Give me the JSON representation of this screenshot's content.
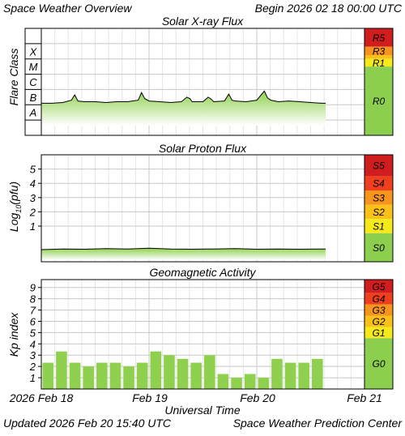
{
  "header": {
    "title": "Space Weather Overview",
    "begin": "Begin 2026 02 18 00:00 UTC"
  },
  "footer": {
    "updated": "Updated 2026 Feb 20 15:40 UTC",
    "credit": "Space Weather Prediction Center"
  },
  "colors": {
    "grid": "#dcdcdc",
    "green_fill": "#8fd14f",
    "green_light": "#eef9e4",
    "bar": "#8fd14f",
    "scale_0": "#8ccf4f",
    "scale_1": "#f5e91a",
    "scale_2": "#f9c119",
    "scale_3": "#f7941d",
    "scale_4": "#ef3f1f",
    "scale_5": "#d01d1d"
  },
  "chart_data": [
    {
      "type": "area",
      "title": "Solar X-ray Flux",
      "ylabel": "Flare Class",
      "y_log_flux": true,
      "ylim": [
        -9,
        -2
      ],
      "class_labels": [
        "A",
        "B",
        "C",
        "M",
        "X"
      ],
      "x_tick_labels": [
        "2026 Feb 18",
        "Feb 19",
        "Feb 20",
        "Feb 21"
      ],
      "xlim": [
        0,
        3
      ],
      "x": [
        0.0,
        0.1,
        0.2,
        0.28,
        0.31,
        0.34,
        0.4,
        0.5,
        0.6,
        0.7,
        0.8,
        0.9,
        0.93,
        0.96,
        1.0,
        1.1,
        1.2,
        1.3,
        1.35,
        1.38,
        1.4,
        1.5,
        1.55,
        1.58,
        1.6,
        1.7,
        1.74,
        1.77,
        1.8,
        1.9,
        2.0,
        2.07,
        2.1,
        2.13,
        2.2,
        2.3,
        2.4,
        2.5,
        2.6,
        2.64
      ],
      "y": [
        -6.9,
        -6.9,
        -6.85,
        -6.7,
        -6.35,
        -6.75,
        -6.8,
        -6.8,
        -6.85,
        -6.8,
        -6.8,
        -6.7,
        -6.2,
        -6.6,
        -6.75,
        -6.8,
        -6.85,
        -6.8,
        -6.5,
        -6.6,
        -6.8,
        -6.8,
        -6.5,
        -6.65,
        -6.8,
        -6.75,
        -6.3,
        -6.7,
        -6.75,
        -6.8,
        -6.7,
        -6.1,
        -6.55,
        -6.7,
        -6.8,
        -6.75,
        -6.8,
        -6.85,
        -6.9,
        -6.9
      ],
      "scale_labels": [
        "R5",
        "R3",
        "",
        "R1",
        "R0"
      ]
    },
    {
      "type": "area",
      "title": "Solar Proton Flux",
      "ylabel": "Log10(pfu)",
      "ylabel_main": "Log",
      "ylabel_sub": "10",
      "ylabel_tail": "(pfu)",
      "ylim": [
        -1.5,
        6
      ],
      "y_ticks": [
        "1",
        "2",
        "3",
        "4",
        "5"
      ],
      "x": [
        0.0,
        0.2,
        0.4,
        0.6,
        0.8,
        1.0,
        1.2,
        1.4,
        1.6,
        1.8,
        2.0,
        2.2,
        2.4,
        2.64
      ],
      "y": [
        -0.65,
        -0.6,
        -0.62,
        -0.58,
        -0.6,
        -0.55,
        -0.6,
        -0.62,
        -0.6,
        -0.58,
        -0.62,
        -0.6,
        -0.62,
        -0.6
      ],
      "scale_labels": [
        "S5",
        "S4",
        "S3",
        "S2",
        "S1",
        "S0"
      ]
    },
    {
      "type": "bar",
      "title": "Geomagnetic Activity",
      "ylabel": "Kp index",
      "ylim": [
        0,
        9
      ],
      "y_ticks": [
        "1",
        "2",
        "3",
        "4",
        "5",
        "6",
        "7",
        "8",
        "9"
      ],
      "values": [
        2.33,
        3.33,
        2.33,
        2.0,
        2.33,
        2.33,
        2.0,
        2.33,
        3.33,
        3.0,
        2.67,
        2.33,
        3.0,
        1.33,
        1.0,
        1.33,
        1.0,
        2.67,
        2.33,
        2.33,
        2.67
      ],
      "bar_interval_days": 0.125,
      "x_tick_labels": [
        "2026 Feb 18",
        "Feb 19",
        "Feb 20",
        "Feb 21"
      ],
      "xlabel": "Universal Time",
      "scale_labels": [
        "G5",
        "G4",
        "G3",
        "G2",
        "G1",
        "G0"
      ]
    }
  ]
}
